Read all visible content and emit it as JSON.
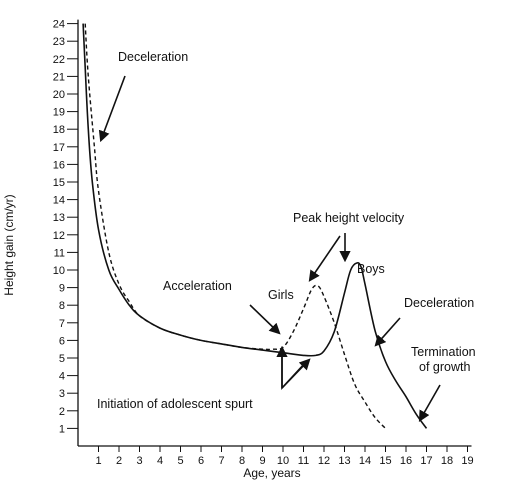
{
  "chart_data": {
    "type": "line",
    "title": "",
    "xlabel": "Age, years",
    "ylabel": "Height gain (cm/yr)",
    "xlim": [
      0,
      19
    ],
    "ylim": [
      0,
      24
    ],
    "x_ticks": [
      1,
      2,
      3,
      4,
      5,
      6,
      7,
      8,
      9,
      10,
      11,
      12,
      13,
      14,
      15,
      16,
      17,
      18,
      19
    ],
    "y_ticks": [
      1,
      2,
      3,
      4,
      5,
      6,
      7,
      8,
      9,
      10,
      11,
      12,
      13,
      14,
      15,
      16,
      17,
      18,
      19,
      20,
      21,
      22,
      23,
      24
    ],
    "grid": false,
    "series": [
      {
        "name": "Boys",
        "style": "solid",
        "points": [
          [
            0.25,
            24
          ],
          [
            0.35,
            21.5
          ],
          [
            0.5,
            18
          ],
          [
            0.7,
            15
          ],
          [
            1.0,
            12.3
          ],
          [
            1.5,
            10
          ],
          [
            2.0,
            8.9
          ],
          [
            2.5,
            8.0
          ],
          [
            3.0,
            7.4
          ],
          [
            4.0,
            6.7
          ],
          [
            5.0,
            6.3
          ],
          [
            6.0,
            6.0
          ],
          [
            7.0,
            5.8
          ],
          [
            8.0,
            5.6
          ],
          [
            9.0,
            5.45
          ],
          [
            10.0,
            5.3
          ],
          [
            11.0,
            5.15
          ],
          [
            11.6,
            5.15
          ],
          [
            12.0,
            5.4
          ],
          [
            12.5,
            6.5
          ],
          [
            13.0,
            8.7
          ],
          [
            13.3,
            10.0
          ],
          [
            13.6,
            10.4
          ],
          [
            13.8,
            10.2
          ],
          [
            14.0,
            9.2
          ],
          [
            14.5,
            6.5
          ],
          [
            15.0,
            4.8
          ],
          [
            15.5,
            3.7
          ],
          [
            16.0,
            2.8
          ],
          [
            16.5,
            1.8
          ],
          [
            17.0,
            1.0
          ]
        ]
      },
      {
        "name": "Girls",
        "style": "dashed",
        "points": [
          [
            0.35,
            24
          ],
          [
            0.5,
            21
          ],
          [
            0.8,
            17
          ],
          [
            1.0,
            14.5
          ],
          [
            1.5,
            11
          ],
          [
            2.0,
            9.2
          ],
          [
            2.5,
            8.2
          ],
          [
            3.0,
            7.4
          ],
          [
            4.0,
            6.7
          ],
          [
            5.0,
            6.3
          ],
          [
            6.0,
            6.0
          ],
          [
            7.0,
            5.8
          ],
          [
            8.0,
            5.6
          ],
          [
            9.0,
            5.5
          ],
          [
            9.5,
            5.5
          ],
          [
            10.0,
            5.6
          ],
          [
            10.5,
            6.5
          ],
          [
            11.0,
            7.8
          ],
          [
            11.4,
            8.9
          ],
          [
            11.7,
            9.1
          ],
          [
            12.0,
            8.5
          ],
          [
            12.5,
            7.0
          ],
          [
            13.0,
            5.2
          ],
          [
            13.5,
            3.5
          ],
          [
            14.0,
            2.5
          ],
          [
            14.5,
            1.6
          ],
          [
            15.0,
            1.0
          ]
        ]
      }
    ],
    "annotations": {
      "deceleration_early": "Deceleration",
      "acceleration": "Acceleration",
      "peak_height_velocity": "Peak height velocity",
      "deceleration_late": "Deceleration",
      "termination_line1": "Termination",
      "termination_line2": "of growth",
      "initiation": "Initiation of adolescent spurt"
    },
    "series_labels": {
      "girls": "Girls",
      "boys": "Boys"
    }
  }
}
